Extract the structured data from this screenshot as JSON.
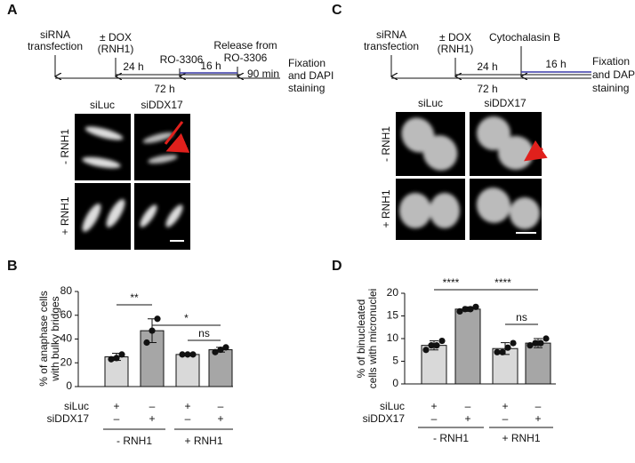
{
  "panel_labels": [
    "A",
    "B",
    "C",
    "D"
  ],
  "timeline_a": {
    "steps": [
      [
        "siRNA",
        "transfection"
      ],
      [
        "± DOX",
        "(RNH1)"
      ],
      [
        "RO-3306"
      ],
      [
        "Release from",
        "RO-3306"
      ]
    ],
    "durations": [
      "24 h",
      "16 h",
      "90 min",
      "72 h"
    ],
    "end": [
      "Fixation",
      "and DAPI",
      "staining"
    ]
  },
  "timeline_c": {
    "steps": [
      [
        "siRNA",
        "transfection"
      ],
      [
        "± DOX",
        "(RNH1)"
      ],
      [
        "Cytochalasin B"
      ]
    ],
    "durations": [
      "24 h",
      "16 h",
      "72 h"
    ],
    "end": [
      "Fixation",
      "and DAPI",
      "staining"
    ]
  },
  "micrographs_a": {
    "columns": [
      "siLuc",
      "siDDX17"
    ],
    "rows": [
      "- RNH1",
      "+ RNH1"
    ]
  },
  "micrographs_c": {
    "columns": [
      "siLuc",
      "siDDX17"
    ],
    "rows": [
      "- RNH1",
      "+ RNH1"
    ]
  },
  "chart_data": [
    {
      "type": "bar",
      "ylabel": [
        "% of anaphase cells",
        "with bulky bridges"
      ],
      "values": [
        25,
        47,
        27,
        31
      ],
      "errors": [
        3,
        10,
        1,
        2
      ],
      "points": [
        [
          23,
          24,
          27
        ],
        [
          37,
          47,
          57
        ],
        [
          27,
          27,
          27
        ],
        [
          29,
          31,
          33
        ]
      ],
      "colors": [
        "#d9d9d9",
        "#a6a6a6",
        "#d9d9d9",
        "#a6a6a6"
      ],
      "ylim": [
        0,
        80
      ],
      "yticks": [
        0,
        20,
        40,
        60,
        80
      ],
      "significance": [
        "**",
        "*",
        "ns"
      ],
      "conditions": [
        {
          "name": "siLuc",
          "marks": [
            "+",
            "–",
            "+",
            "–"
          ]
        },
        {
          "name": "siDDX17",
          "marks": [
            "–",
            "+",
            "–",
            "+"
          ]
        }
      ],
      "groups": [
        "- RNH1",
        "+ RNH1"
      ]
    },
    {
      "type": "bar",
      "ylabel": [
        "% of binucleated",
        "cells with micronuclei"
      ],
      "values": [
        8.5,
        16.5,
        7.8,
        9.0
      ],
      "errors": [
        1,
        0.5,
        1.3,
        1.0
      ],
      "points": [
        [
          7.5,
          8.5,
          8.5,
          9.5
        ],
        [
          16,
          16.5,
          16.5,
          17
        ],
        [
          7,
          7,
          8,
          9
        ],
        [
          8.5,
          9,
          9,
          10
        ]
      ],
      "colors": [
        "#d9d9d9",
        "#a6a6a6",
        "#d9d9d9",
        "#a6a6a6"
      ],
      "ylim": [
        0,
        20
      ],
      "yticks": [
        0,
        5,
        10,
        15,
        20
      ],
      "significance": [
        "****",
        "****",
        "ns"
      ],
      "conditions": [
        {
          "name": "siLuc",
          "marks": [
            "+",
            "–",
            "+",
            "–"
          ]
        },
        {
          "name": "siDDX17",
          "marks": [
            "–",
            "+",
            "–",
            "+"
          ]
        }
      ],
      "groups": [
        "- RNH1",
        "+ RNH1"
      ]
    }
  ]
}
